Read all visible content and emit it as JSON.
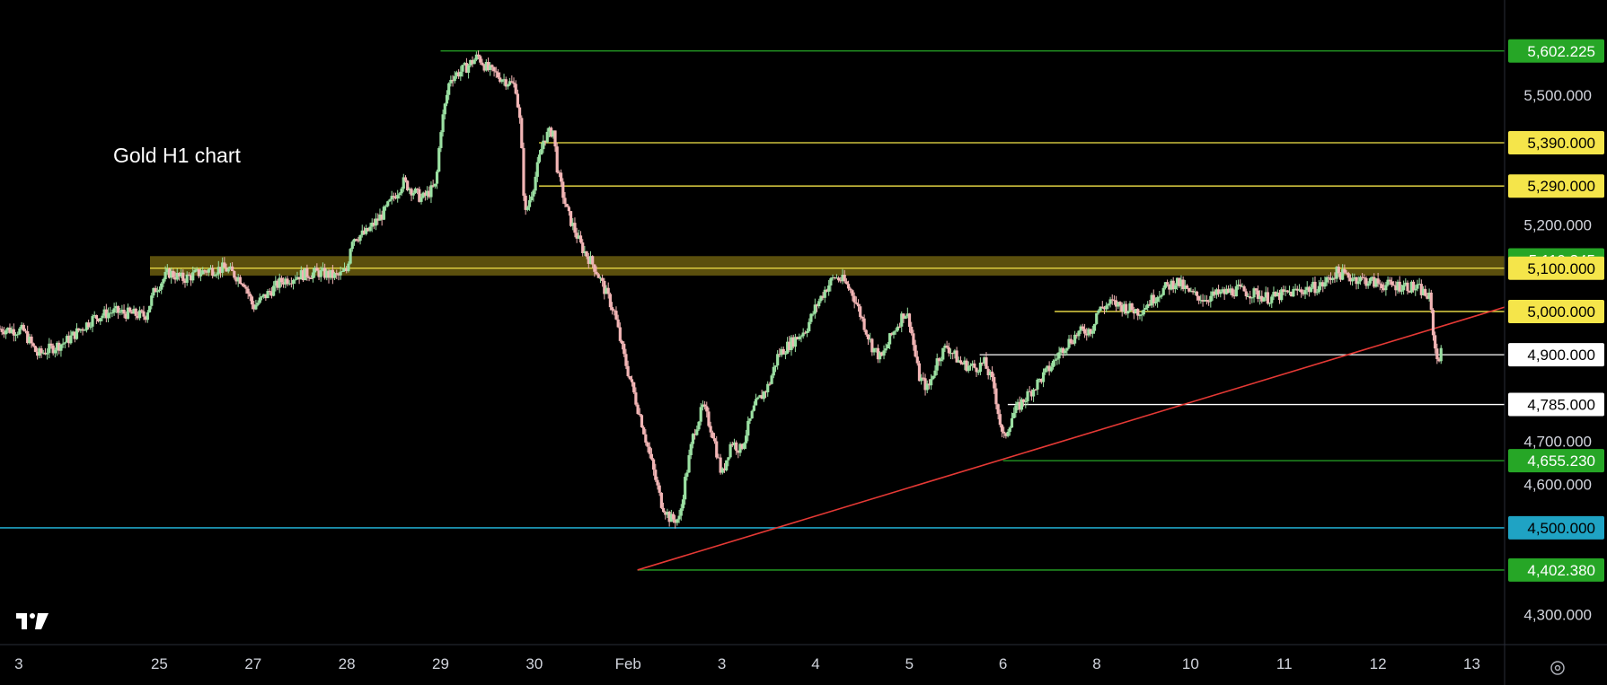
{
  "chart_data": {
    "type": "candlestick",
    "title": "Gold H1 chart",
    "ylim": [
      4230,
      5720
    ],
    "ytick_labels": [
      "5,500.000",
      "5,200.000",
      "4,700.000",
      "4,600.000",
      "4,300.000"
    ],
    "xtick_labels": [
      {
        "label": "3",
        "x": -1.5
      },
      {
        "label": "25",
        "x": 0
      },
      {
        "label": "27",
        "x": 1
      },
      {
        "label": "28",
        "x": 2
      },
      {
        "label": "29",
        "x": 3
      },
      {
        "label": "30",
        "x": 4
      },
      {
        "label": "Feb",
        "x": 5
      },
      {
        "label": "3",
        "x": 6
      },
      {
        "label": "4",
        "x": 7
      },
      {
        "label": "5",
        "x": 8
      },
      {
        "label": "6",
        "x": 9
      },
      {
        "label": "8",
        "x": 10
      },
      {
        "label": "10",
        "x": 11
      },
      {
        "label": "11",
        "x": 12
      },
      {
        "label": "12",
        "x": 13
      },
      {
        "label": "13",
        "x": 14
      }
    ],
    "xlim": [
      -1.7,
      14.35
    ],
    "levels": [
      {
        "price": 5602.225,
        "label": "5,602.225",
        "color": "#26a626",
        "text": "#ffffff",
        "x_start": 3.0
      },
      {
        "price": 5390.0,
        "label": "5,390.000",
        "color": "#f5e54a",
        "text": "#000000",
        "x_start": 4.05
      },
      {
        "price": 5290.0,
        "label": "5,290.000",
        "color": "#f5e54a",
        "text": "#000000",
        "x_start": 4.05
      },
      {
        "price": 5119.345,
        "label": "5,119.345",
        "color": "#26a626",
        "text": "#ffffff",
        "x_start": null
      },
      {
        "price": 5100.0,
        "label": "5,100.000",
        "color": "#f5e54a",
        "text": "#000000",
        "x_start": -0.1
      },
      {
        "price": 5000.0,
        "label": "5,000.000",
        "color": "#f5e54a",
        "text": "#000000",
        "x_start": 9.55
      },
      {
        "price": 4900.0,
        "label": "4,900.000",
        "color": "#ffffff",
        "text": "#000000",
        "x_start": 8.75
      },
      {
        "price": 4785.0,
        "label": "4,785.000",
        "color": "#ffffff",
        "text": "#000000",
        "x_start": 9.05
      },
      {
        "price": 4655.23,
        "label": "4,655.230",
        "color": "#26a626",
        "text": "#ffffff",
        "x_start": 9.0
      },
      {
        "price": 4500.0,
        "label": "4,500.000",
        "color": "#1fa3c4",
        "text": "#000000",
        "x_start": -1.7
      },
      {
        "price": 4402.38,
        "label": "4,402.380",
        "color": "#26a626",
        "text": "#ffffff",
        "x_start": 5.1
      }
    ],
    "resistance_zone": {
      "from": 5083,
      "to": 5128,
      "color": "#6b5d0f"
    },
    "trendline": {
      "color": "#e53935",
      "from": {
        "x": 5.1,
        "y": 4402.38
      },
      "to": {
        "x": 14.35,
        "y": 5010
      }
    },
    "price_path": [
      [
        -1.7,
        4960
      ],
      [
        -1.45,
        4955
      ],
      [
        -1.3,
        4900
      ],
      [
        -1.0,
        4930
      ],
      [
        -0.7,
        4985
      ],
      [
        -0.5,
        5000
      ],
      [
        -0.15,
        4990
      ],
      [
        -0.05,
        5050
      ],
      [
        0.1,
        5090
      ],
      [
        0.25,
        5075
      ],
      [
        0.5,
        5095
      ],
      [
        0.7,
        5100
      ],
      [
        0.9,
        5070
      ],
      [
        1.0,
        5010
      ],
      [
        1.15,
        5040
      ],
      [
        1.3,
        5070
      ],
      [
        1.5,
        5085
      ],
      [
        1.7,
        5090
      ],
      [
        1.9,
        5080
      ],
      [
        2.0,
        5095
      ],
      [
        2.05,
        5170
      ],
      [
        2.2,
        5180
      ],
      [
        2.4,
        5230
      ],
      [
        2.6,
        5300
      ],
      [
        2.8,
        5260
      ],
      [
        2.95,
        5290
      ],
      [
        3.0,
        5420
      ],
      [
        3.1,
        5540
      ],
      [
        3.25,
        5560
      ],
      [
        3.4,
        5590
      ],
      [
        3.5,
        5560
      ],
      [
        3.65,
        5540
      ],
      [
        3.8,
        5520
      ],
      [
        3.85,
        5430
      ],
      [
        3.9,
        5220
      ],
      [
        4.0,
        5300
      ],
      [
        4.1,
        5400
      ],
      [
        4.2,
        5420
      ],
      [
        4.25,
        5320
      ],
      [
        4.35,
        5230
      ],
      [
        4.5,
        5150
      ],
      [
        4.65,
        5100
      ],
      [
        4.75,
        5050
      ],
      [
        4.85,
        5000
      ],
      [
        4.95,
        4900
      ],
      [
        5.05,
        4820
      ],
      [
        5.15,
        4740
      ],
      [
        5.25,
        4650
      ],
      [
        5.35,
        4560
      ],
      [
        5.45,
        4520
      ],
      [
        5.55,
        4520
      ],
      [
        5.6,
        4600
      ],
      [
        5.7,
        4720
      ],
      [
        5.8,
        4780
      ],
      [
        5.9,
        4720
      ],
      [
        6.0,
        4620
      ],
      [
        6.1,
        4700
      ],
      [
        6.2,
        4680
      ],
      [
        6.35,
        4780
      ],
      [
        6.5,
        4830
      ],
      [
        6.6,
        4900
      ],
      [
        6.75,
        4930
      ],
      [
        6.9,
        4960
      ],
      [
        7.0,
        5010
      ],
      [
        7.1,
        5050
      ],
      [
        7.2,
        5080
      ],
      [
        7.3,
        5070
      ],
      [
        7.4,
        5040
      ],
      [
        7.5,
        4980
      ],
      [
        7.6,
        4920
      ],
      [
        7.7,
        4890
      ],
      [
        7.8,
        4940
      ],
      [
        7.95,
        5000
      ],
      [
        8.0,
        4980
      ],
      [
        8.1,
        4850
      ],
      [
        8.2,
        4820
      ],
      [
        8.3,
        4890
      ],
      [
        8.4,
        4920
      ],
      [
        8.55,
        4880
      ],
      [
        8.7,
        4870
      ],
      [
        8.8,
        4880
      ],
      [
        8.9,
        4830
      ],
      [
        9.0,
        4700
      ],
      [
        9.1,
        4760
      ],
      [
        9.2,
        4790
      ],
      [
        9.35,
        4830
      ],
      [
        9.5,
        4870
      ],
      [
        9.65,
        4920
      ],
      [
        9.8,
        4950
      ],
      [
        9.95,
        4960
      ],
      [
        10.0,
        5000
      ],
      [
        10.15,
        5020
      ],
      [
        10.3,
        5010
      ],
      [
        10.45,
        5000
      ],
      [
        10.55,
        5020
      ],
      [
        10.7,
        5050
      ],
      [
        10.85,
        5070
      ],
      [
        11.0,
        5040
      ],
      [
        11.15,
        5030
      ],
      [
        11.3,
        5040
      ],
      [
        11.5,
        5050
      ],
      [
        11.7,
        5040
      ],
      [
        11.85,
        5030
      ],
      [
        12.0,
        5040
      ],
      [
        12.2,
        5050
      ],
      [
        12.4,
        5060
      ],
      [
        12.55,
        5090
      ],
      [
        12.7,
        5080
      ],
      [
        12.9,
        5070
      ],
      [
        13.1,
        5060
      ],
      [
        13.3,
        5060
      ],
      [
        13.45,
        5050
      ],
      [
        13.55,
        5030
      ],
      [
        13.62,
        4890
      ],
      [
        13.68,
        4905
      ]
    ]
  },
  "ui": {
    "logo_name": "tradingview-logo-icon",
    "settings_name": "settings-icon"
  }
}
